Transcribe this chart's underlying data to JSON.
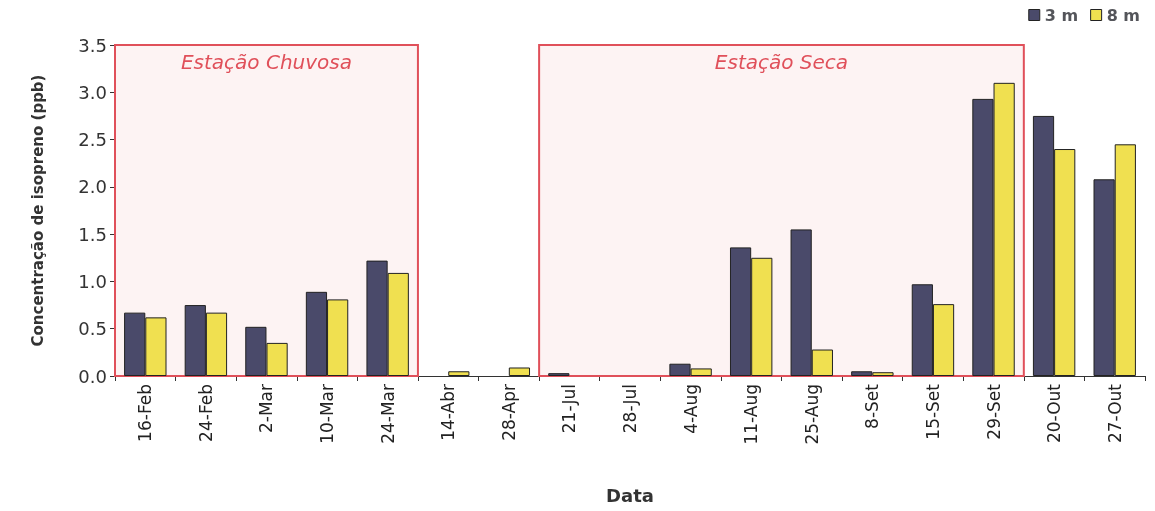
{
  "chart_data": {
    "type": "bar",
    "xlabel": "Data",
    "ylabel": "Concentração de isopreno (ppb)",
    "categories": [
      "16-Feb",
      "24-Feb",
      "2-Mar",
      "10-Mar",
      "24-Mar",
      "14-Abr",
      "28-Apr",
      "21-Jul",
      "28-Jul",
      "4-Aug",
      "11-Aug",
      "25-Aug",
      "8-Set",
      "15-Set",
      "29-Set",
      "20-Out",
      "27-Out"
    ],
    "series": [
      {
        "name": "3 m",
        "color": "#4a4a6a",
        "values": [
          0.67,
          0.75,
          0.52,
          0.89,
          1.22,
          0,
          0,
          0.03,
          0,
          0.13,
          1.36,
          1.55,
          0.05,
          0.97,
          2.93,
          2.75,
          2.08
        ]
      },
      {
        "name": "8 m",
        "color": "#f0e050",
        "values": [
          0.62,
          0.67,
          0.35,
          0.81,
          1.09,
          0.05,
          0.09,
          0,
          0,
          0.08,
          1.25,
          0.28,
          0.04,
          0.76,
          3.1,
          2.4,
          2.45
        ]
      }
    ],
    "ylim": [
      0,
      3.5
    ],
    "yticks": [
      {
        "value": 0,
        "label": "0.0"
      },
      0.5,
      {
        "value": 1,
        "label": "1.0"
      },
      1.5,
      {
        "value": 2,
        "label": "2.0"
      },
      2.5,
      {
        "value": 3,
        "label": "3.0"
      },
      3.5
    ],
    "bands": [
      {
        "axis": "x",
        "from": "16-Feb",
        "to": "24-Mar",
        "label": "Estação Chuvosa",
        "color": "#e0505a"
      },
      {
        "axis": "x",
        "from": "21-Jul",
        "to": "29-Set",
        "label": "Estação Seca",
        "color": "#e0505a"
      }
    ],
    "grid": false,
    "legend": "top right"
  }
}
